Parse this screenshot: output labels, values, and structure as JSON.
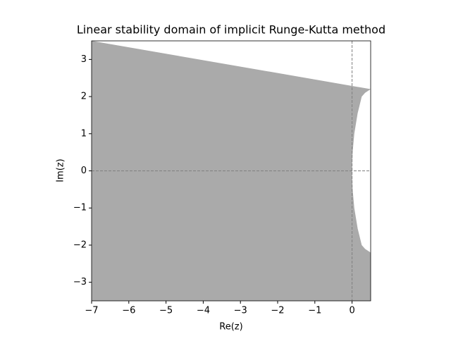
{
  "chart_data": {
    "type": "region",
    "title": "Linear stability domain of implicit Runge-Kutta method",
    "x_label": "Re(z)",
    "y_label": "Im(z)",
    "x": [
      0.5,
      0.35,
      0.26,
      0.15,
      0.06,
      0.015,
      0,
      0.015,
      0.06,
      0.15,
      0.26,
      0.35,
      0.5
    ],
    "y": [
      2.2,
      2.1,
      2.0,
      1.55,
      1.0,
      0.5,
      0,
      -0.5,
      -1.0,
      -1.55,
      -2.0,
      -2.1,
      -2.2
    ],
    "color": "#aaaaaa",
    "reference_lines": {
      "x": 0,
      "y": 0
    },
    "xlim": [
      -7,
      0.5
    ],
    "ylim": [
      -3.5,
      3.5
    ],
    "xticks": [
      {
        "value": -7,
        "label": "−7"
      },
      {
        "value": -6,
        "label": "−6"
      },
      {
        "value": -5,
        "label": "−5"
      },
      {
        "value": -4,
        "label": "−4"
      },
      {
        "value": -3,
        "label": "−3"
      },
      {
        "value": -2,
        "label": "−2"
      },
      {
        "value": -1,
        "label": "−1"
      },
      0
    ],
    "yticks": [
      {
        "value": -3,
        "label": "−3"
      },
      {
        "value": -2,
        "label": "−2"
      },
      {
        "value": -1,
        "label": "−1"
      },
      0,
      1,
      2,
      3
    ]
  }
}
